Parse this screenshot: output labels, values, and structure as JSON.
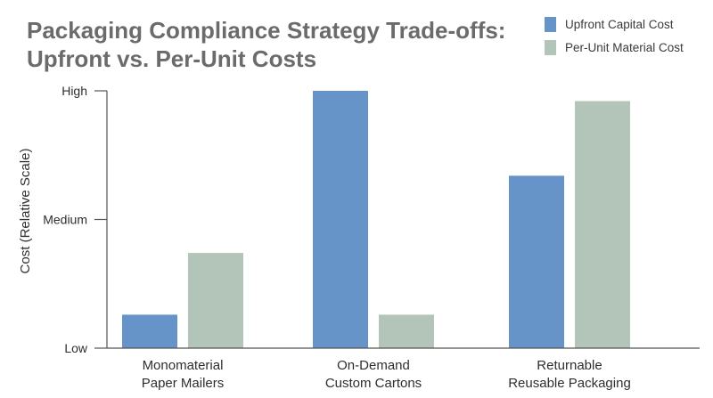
{
  "chart_data": {
    "type": "bar",
    "title_lines": [
      "Packaging Compliance Strategy Trade-offs:",
      "Upfront vs. Per-Unit Costs"
    ],
    "ylabel": "Cost (Relative Scale)",
    "xlabel": "",
    "categories": [
      [
        "Monomaterial",
        "Paper Mailers"
      ],
      [
        "On-Demand",
        "Custom Cartons"
      ],
      [
        "Returnable",
        "Reusable Packaging"
      ]
    ],
    "y_ticks": [
      {
        "label": "Low",
        "value": 0
      },
      {
        "label": "Medium",
        "value": 50
      },
      {
        "label": "High",
        "value": 100
      }
    ],
    "ylim": [
      0,
      100
    ],
    "series": [
      {
        "name": "Upfront Capital Cost",
        "color": "#6694c9",
        "values": [
          13,
          100,
          67
        ]
      },
      {
        "name": "Per-Unit Material Cost",
        "color": "#b3c4b8",
        "values": [
          37,
          13,
          96
        ]
      }
    ],
    "grid": false,
    "legend_position": "top-right"
  }
}
